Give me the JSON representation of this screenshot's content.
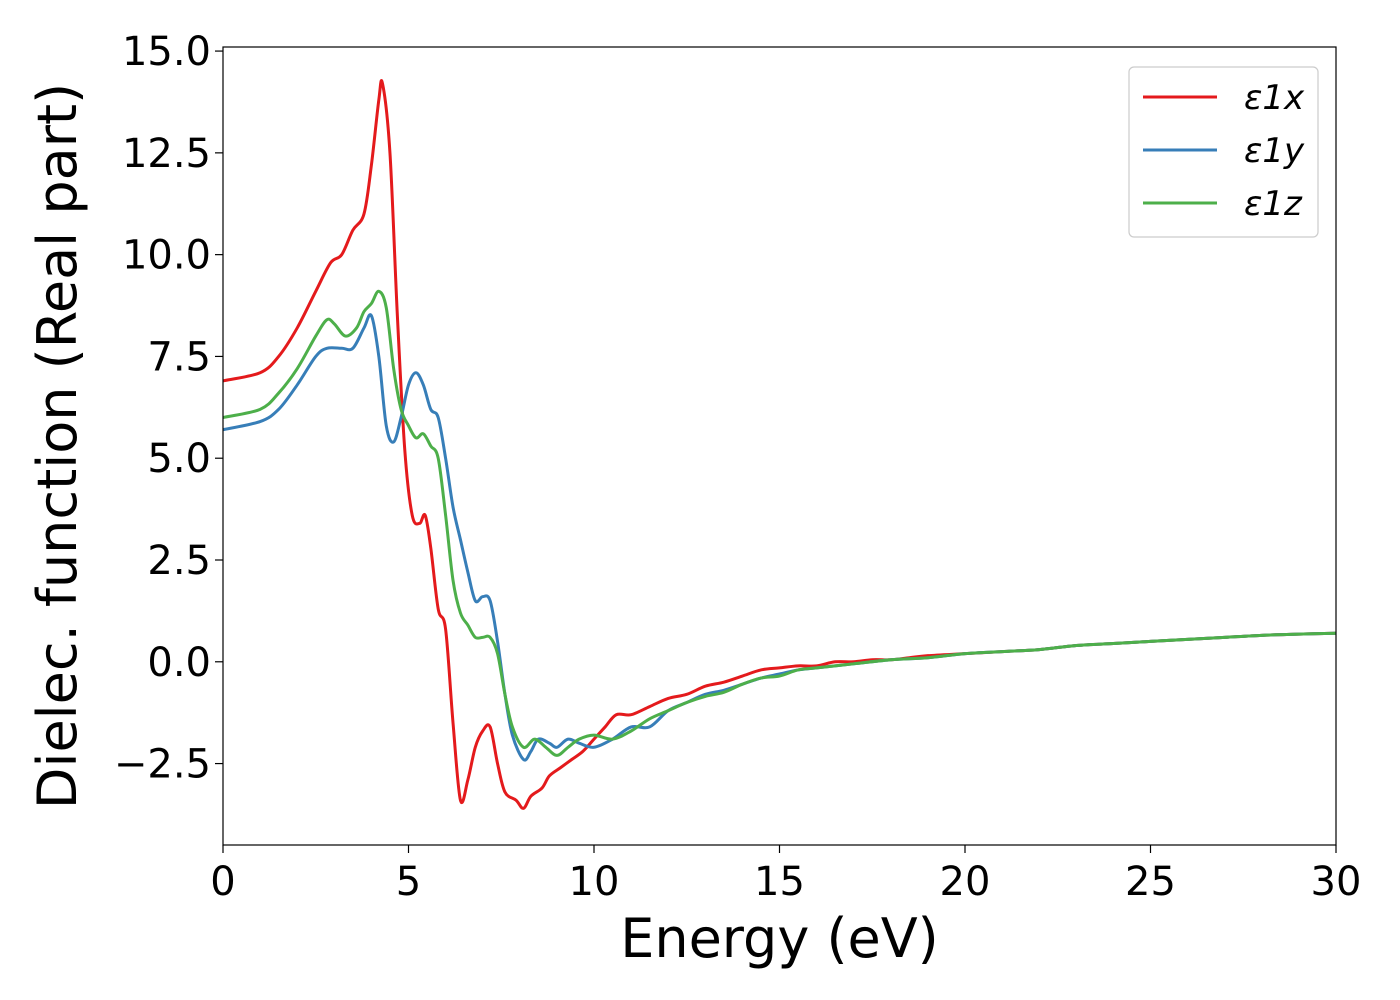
{
  "chart_data": {
    "type": "line",
    "xlabel": "Energy (eV)",
    "ylabel": "Dielec. function (Real part)",
    "xlim": [
      0,
      30
    ],
    "ylim": [
      -4.5,
      15.1
    ],
    "xticks": [
      0,
      5,
      10,
      15,
      20,
      25,
      30
    ],
    "xtick_labels": [
      "0",
      "5",
      "10",
      "15",
      "20",
      "25",
      "30"
    ],
    "yticks": [
      -2.5,
      0.0,
      2.5,
      5.0,
      7.5,
      10.0,
      12.5,
      15.0
    ],
    "ytick_labels": [
      "−2.5",
      "0.0",
      "2.5",
      "5.0",
      "7.5",
      "10.0",
      "12.5",
      "15.0"
    ],
    "grid": false,
    "legend_position": "top-right",
    "series": [
      {
        "name": "ε1x",
        "color": "#e41a1c",
        "x": [
          0,
          1,
          1.5,
          2,
          2.5,
          2.9,
          3.2,
          3.5,
          3.8,
          4.0,
          4.2,
          4.3,
          4.5,
          4.7,
          4.9,
          5.1,
          5.3,
          5.45,
          5.6,
          5.8,
          6.0,
          6.2,
          6.4,
          6.6,
          6.8,
          7.0,
          7.2,
          7.4,
          7.6,
          7.9,
          8.1,
          8.3,
          8.6,
          8.8,
          9.1,
          9.4,
          9.7,
          10.0,
          10.3,
          10.6,
          11.0,
          11.5,
          12.0,
          12.5,
          13.0,
          13.5,
          14.0,
          14.5,
          15.0,
          15.5,
          16.0,
          16.5,
          17.0,
          17.5,
          18.0,
          18.5,
          19.0,
          20,
          21,
          22,
          23,
          24,
          25,
          26,
          27,
          28,
          29,
          30
        ],
        "y": [
          6.9,
          7.1,
          7.5,
          8.2,
          9.1,
          9.8,
          10.0,
          10.6,
          11.0,
          12.2,
          13.8,
          14.2,
          12.5,
          8.5,
          5.2,
          3.6,
          3.4,
          3.6,
          2.8,
          1.3,
          0.8,
          -1.5,
          -3.4,
          -2.9,
          -2.1,
          -1.7,
          -1.6,
          -2.5,
          -3.2,
          -3.4,
          -3.6,
          -3.3,
          -3.1,
          -2.8,
          -2.6,
          -2.4,
          -2.2,
          -1.9,
          -1.6,
          -1.3,
          -1.3,
          -1.1,
          -0.9,
          -0.8,
          -0.6,
          -0.5,
          -0.35,
          -0.2,
          -0.15,
          -0.1,
          -0.1,
          0.0,
          0.0,
          0.05,
          0.05,
          0.1,
          0.15,
          0.2,
          0.25,
          0.3,
          0.4,
          0.45,
          0.5,
          0.55,
          0.6,
          0.65,
          0.68,
          0.7
        ]
      },
      {
        "name": "ε1y",
        "color": "#377eb8",
        "x": [
          0,
          1,
          1.5,
          2,
          2.5,
          2.8,
          3.2,
          3.5,
          3.8,
          4.0,
          4.2,
          4.4,
          4.6,
          4.8,
          5.0,
          5.2,
          5.4,
          5.6,
          5.8,
          6.0,
          6.2,
          6.4,
          6.6,
          6.8,
          7.0,
          7.2,
          7.4,
          7.6,
          7.8,
          8.1,
          8.3,
          8.5,
          8.8,
          9.0,
          9.3,
          9.6,
          10.0,
          10.5,
          11.0,
          11.5,
          12.0,
          12.5,
          13.0,
          13.5,
          14.0,
          14.5,
          15.0,
          15.5,
          16.0,
          17.0,
          18.0,
          19.0,
          20,
          21,
          22,
          23,
          24,
          25,
          26,
          27,
          28,
          29,
          30
        ],
        "y": [
          5.7,
          5.9,
          6.2,
          6.8,
          7.5,
          7.7,
          7.7,
          7.7,
          8.2,
          8.5,
          7.5,
          5.8,
          5.4,
          6.0,
          6.8,
          7.1,
          6.8,
          6.2,
          6.0,
          5.0,
          3.8,
          3.0,
          2.2,
          1.5,
          1.6,
          1.5,
          0.5,
          -0.8,
          -1.8,
          -2.4,
          -2.2,
          -1.9,
          -2.0,
          -2.1,
          -1.9,
          -2.0,
          -2.1,
          -1.9,
          -1.6,
          -1.6,
          -1.2,
          -1.0,
          -0.8,
          -0.7,
          -0.55,
          -0.4,
          -0.3,
          -0.2,
          -0.15,
          -0.05,
          0.05,
          0.1,
          0.2,
          0.25,
          0.3,
          0.4,
          0.45,
          0.5,
          0.55,
          0.6,
          0.65,
          0.68,
          0.7
        ]
      },
      {
        "name": "ε1z",
        "color": "#4daf4a",
        "x": [
          0,
          1,
          1.5,
          2,
          2.5,
          2.8,
          3.0,
          3.3,
          3.6,
          3.8,
          4.0,
          4.2,
          4.4,
          4.6,
          4.8,
          5.0,
          5.2,
          5.4,
          5.6,
          5.8,
          6.0,
          6.2,
          6.4,
          6.6,
          6.8,
          7.0,
          7.2,
          7.4,
          7.6,
          7.8,
          8.1,
          8.4,
          8.7,
          9.0,
          9.3,
          9.6,
          10.0,
          10.5,
          11.0,
          11.5,
          12.0,
          12.5,
          13.0,
          13.5,
          14.0,
          14.5,
          15.0,
          15.5,
          16.0,
          17.0,
          18.0,
          19.0,
          20,
          21,
          22,
          23,
          24,
          25,
          26,
          27,
          28,
          29,
          30
        ],
        "y": [
          6.0,
          6.2,
          6.6,
          7.2,
          8.0,
          8.4,
          8.3,
          8.0,
          8.2,
          8.6,
          8.8,
          9.1,
          8.7,
          7.2,
          6.2,
          5.8,
          5.5,
          5.6,
          5.3,
          5.0,
          3.6,
          2.0,
          1.2,
          0.9,
          0.6,
          0.6,
          0.6,
          0.2,
          -0.8,
          -1.6,
          -2.1,
          -1.9,
          -2.1,
          -2.3,
          -2.1,
          -1.9,
          -1.8,
          -1.9,
          -1.7,
          -1.4,
          -1.2,
          -1.0,
          -0.85,
          -0.75,
          -0.55,
          -0.4,
          -0.35,
          -0.2,
          -0.15,
          -0.05,
          0.05,
          0.1,
          0.2,
          0.25,
          0.3,
          0.4,
          0.45,
          0.5,
          0.55,
          0.6,
          0.65,
          0.68,
          0.7
        ]
      }
    ]
  }
}
